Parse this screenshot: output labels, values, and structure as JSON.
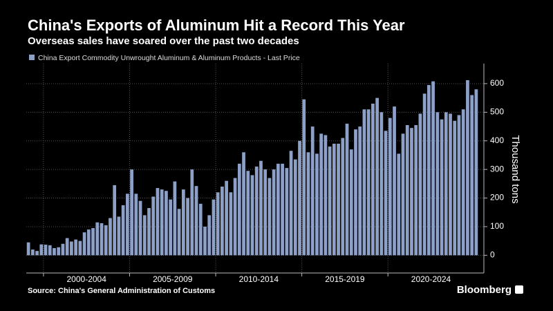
{
  "chart_data": {
    "type": "bar",
    "title": "China's Exports of Aluminum Hit a Record This Year",
    "subtitle": "Overseas sales have soared over the past two decades",
    "y_label": "Thousand tons",
    "source": "Source: China's General Administration of Customs",
    "brand": "Bloomberg",
    "period_labels": [
      "2000-2004",
      "2005-2009",
      "2010-2014",
      "2015-2019",
      "2020-2024"
    ],
    "categories": [
      null,
      null,
      null,
      null,
      null,
      null,
      null,
      null,
      null,
      null,
      null,
      null,
      null,
      null,
      null,
      null,
      null,
      null,
      null,
      null,
      null,
      null,
      null,
      null,
      null,
      null,
      null,
      null,
      null,
      null,
      null,
      null,
      null,
      null,
      null,
      null,
      null,
      null,
      null,
      null,
      null,
      null,
      null,
      null,
      null,
      null,
      null,
      null,
      null,
      null,
      null,
      null,
      null,
      null,
      null,
      null,
      null,
      null,
      null,
      null,
      null,
      null,
      null,
      null,
      null,
      null,
      null,
      null,
      null,
      null,
      null,
      null,
      null,
      null,
      null,
      null,
      null,
      null,
      null,
      null,
      null,
      null,
      null,
      null,
      null,
      null,
      null,
      null,
      null,
      null,
      null,
      null,
      null,
      null,
      null,
      null,
      null,
      null,
      null,
      null,
      null,
      null,
      null,
      null,
      null
    ],
    "series": [
      {
        "name": "China Export Commodity Unwrought Aluminum & Aluminum Products - Last Price",
        "color": "#8da0c7",
        "values": [
          45,
          20,
          15,
          38,
          37,
          35,
          25,
          28,
          40,
          60,
          48,
          55,
          50,
          80,
          90,
          95,
          115,
          112,
          105,
          130,
          245,
          135,
          175,
          215,
          300,
          215,
          190,
          140,
          165,
          205,
          235,
          230,
          225,
          195,
          258,
          162,
          230,
          200,
          300,
          242,
          180,
          100,
          140,
          195,
          220,
          240,
          260,
          220,
          270,
          320,
          360,
          295,
          280,
          310,
          330,
          300,
          270,
          300,
          320,
          320,
          305,
          365,
          335,
          400,
          545,
          360,
          450,
          355,
          425,
          420,
          380,
          390,
          390,
          410,
          460,
          370,
          440,
          450,
          510,
          510,
          530,
          550,
          500,
          435,
          480,
          520,
          355,
          425,
          455,
          445,
          455,
          495,
          565,
          595,
          608,
          500,
          475,
          500,
          495,
          470,
          490,
          510,
          612,
          560,
          580
        ]
      }
    ],
    "ylim": [
      -62,
      670
    ],
    "yticks": [
      0,
      100,
      200,
      300,
      400,
      500,
      600
    ],
    "grid": true
  }
}
